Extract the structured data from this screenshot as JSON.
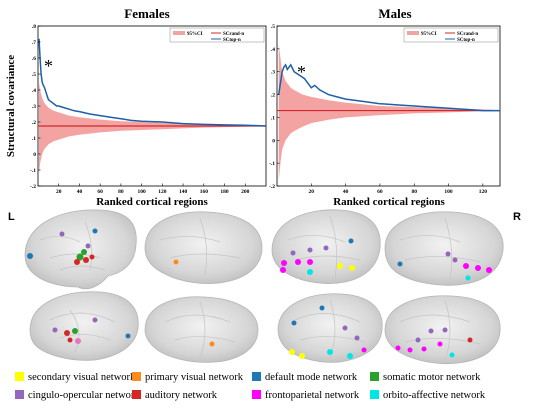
{
  "chart_data": [
    {
      "type": "line",
      "title": "Females",
      "xlabel": "Ranked cortical regions",
      "ylabel": "Structural covariance",
      "xlim": [
        0,
        220
      ],
      "ylim": [
        -0.2,
        0.8
      ],
      "x_ticks": [
        20,
        40,
        60,
        80,
        100,
        120,
        140,
        160,
        180,
        200
      ],
      "y_ticks": [
        -0.2,
        -0.1,
        0,
        0.1,
        0.2,
        0.3,
        0.4,
        0.5,
        0.6,
        0.7,
        0.8
      ],
      "legend_position": "top-right",
      "legend": [
        "95%CI",
        "SCrand-n",
        "SCtop-n"
      ],
      "annotation": "*",
      "series": [
        {
          "name": "SCtop-n",
          "x": [
            1,
            2,
            3,
            4,
            5,
            6,
            7,
            8,
            9,
            10,
            12,
            14,
            16,
            18,
            20,
            25,
            30,
            35,
            40,
            50,
            60,
            70,
            80,
            90,
            100,
            120,
            140,
            160,
            180,
            200,
            220
          ],
          "y": [
            0.72,
            0.6,
            0.5,
            0.45,
            0.43,
            0.42,
            0.4,
            0.38,
            0.36,
            0.34,
            0.33,
            0.32,
            0.31,
            0.3,
            0.3,
            0.29,
            0.28,
            0.27,
            0.265,
            0.25,
            0.24,
            0.23,
            0.22,
            0.21,
            0.205,
            0.2,
            0.19,
            0.185,
            0.182,
            0.18,
            0.175
          ]
        },
        {
          "name": "SCrand-n",
          "x": [
            0,
            220
          ],
          "y": [
            0.175,
            0.175
          ]
        }
      ],
      "ci_band": {
        "x": [
          1,
          2,
          4,
          6,
          10,
          15,
          20,
          30,
          40,
          60,
          80,
          100,
          120,
          140,
          160,
          180,
          200,
          220
        ],
        "upper": [
          0.45,
          0.4,
          0.35,
          0.32,
          0.29,
          0.27,
          0.26,
          0.24,
          0.23,
          0.215,
          0.205,
          0.2,
          0.195,
          0.19,
          0.185,
          0.182,
          0.179,
          0.176
        ],
        "lower": [
          -0.12,
          -0.06,
          0.0,
          0.03,
          0.06,
          0.08,
          0.09,
          0.11,
          0.12,
          0.135,
          0.145,
          0.15,
          0.155,
          0.16,
          0.165,
          0.168,
          0.171,
          0.174
        ]
      }
    },
    {
      "type": "line",
      "title": "Males",
      "xlabel": "Ranked cortical regions",
      "ylabel": "",
      "xlim": [
        0,
        130
      ],
      "ylim": [
        -0.2,
        0.5
      ],
      "x_ticks": [
        20,
        40,
        60,
        80,
        100,
        120
      ],
      "y_ticks": [
        -0.2,
        -0.1,
        0,
        0.1,
        0.2,
        0.3,
        0.4,
        0.5
      ],
      "legend_position": "top-right",
      "legend": [
        "95%CI",
        "SCrand-n",
        "SCtop-n"
      ],
      "annotation": "*",
      "series": [
        {
          "name": "SCtop-n",
          "x": [
            1,
            2,
            3,
            4,
            5,
            6,
            7,
            8,
            10,
            12,
            14,
            16,
            18,
            20,
            22,
            25,
            30,
            35,
            40,
            50,
            60,
            70,
            80,
            90,
            100,
            110,
            120,
            130
          ],
          "y": [
            0.2,
            0.25,
            0.3,
            0.32,
            0.33,
            0.31,
            0.32,
            0.33,
            0.3,
            0.29,
            0.28,
            0.27,
            0.25,
            0.23,
            0.24,
            0.22,
            0.2,
            0.19,
            0.18,
            0.17,
            0.16,
            0.155,
            0.15,
            0.145,
            0.14,
            0.135,
            0.13,
            0.13
          ]
        },
        {
          "name": "SCrand-n",
          "x": [
            0,
            130
          ],
          "y": [
            0.13,
            0.13
          ]
        }
      ],
      "ci_band": {
        "x": [
          1,
          2,
          3,
          5,
          8,
          10,
          15,
          20,
          30,
          40,
          60,
          80,
          100,
          120,
          130
        ],
        "upper": [
          0.42,
          0.36,
          0.3,
          0.26,
          0.23,
          0.22,
          0.2,
          0.19,
          0.175,
          0.165,
          0.15,
          0.145,
          0.14,
          0.135,
          0.132
        ],
        "lower": [
          -0.18,
          -0.1,
          -0.04,
          0.0,
          0.03,
          0.04,
          0.06,
          0.075,
          0.09,
          0.1,
          0.11,
          0.118,
          0.122,
          0.127,
          0.128
        ]
      }
    }
  ],
  "side_labels": {
    "left": "L",
    "right": "R"
  },
  "networks": [
    {
      "label": "secondary visual network",
      "color": "#ffff00"
    },
    {
      "label": "primary visual network",
      "color": "#ff8c1a"
    },
    {
      "label": "default mode network",
      "color": "#1f77b4"
    },
    {
      "label": "somatic motor network",
      "color": "#2ca02c"
    },
    {
      "label": "cingulo-opercular network",
      "color": "#9467bd"
    },
    {
      "label": "auditory network",
      "color": "#d62728"
    },
    {
      "label": "frontoparietal network",
      "color": "#ff00ff"
    },
    {
      "label": "orbito-affective network",
      "color": "#00e5e5"
    }
  ],
  "colors": {
    "ci_fill": "#f4a3a3",
    "top_line": "#1f5fa8",
    "rand_line": "#d62728",
    "brain_fill": "#d9d9d9"
  }
}
